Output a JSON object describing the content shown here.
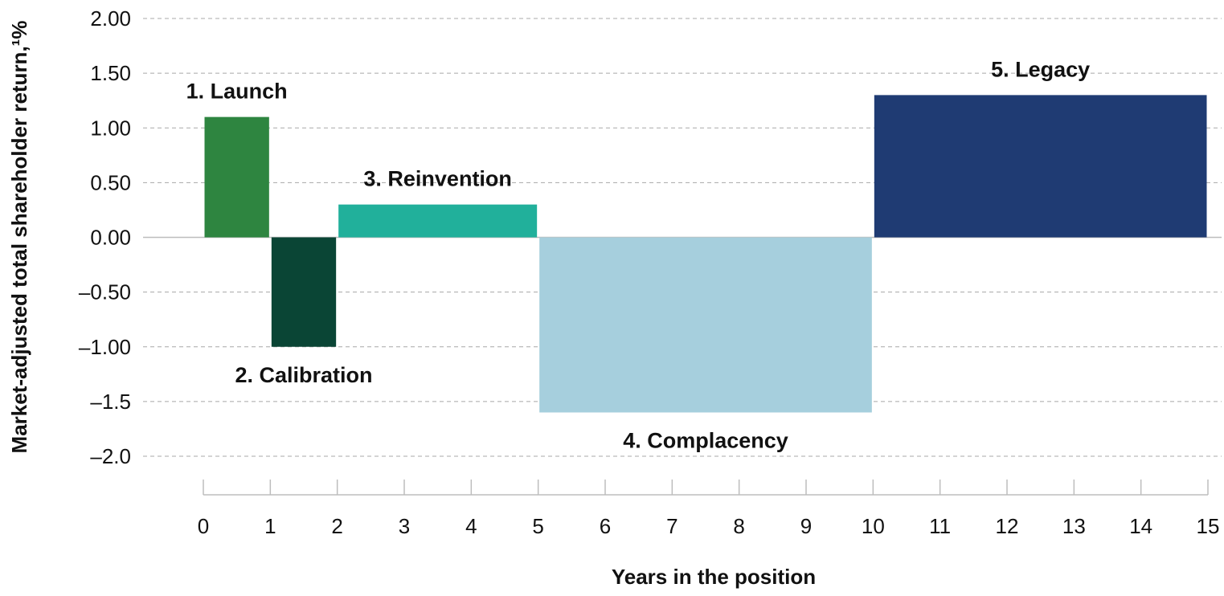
{
  "chart_data": {
    "type": "bar",
    "ylabel": "Market-adjusted total shareholder return,¹%",
    "xlabel": "Years in the position",
    "ylim": [
      -2.0,
      2.0
    ],
    "xlim": [
      0,
      15
    ],
    "grid": "horizontal-dashed",
    "y_ticks": [
      {
        "value": 2.0,
        "label": "2.00"
      },
      {
        "value": 1.5,
        "label": "1.50"
      },
      {
        "value": 1.0,
        "label": "1.00"
      },
      {
        "value": 0.5,
        "label": "0.50"
      },
      {
        "value": 0.0,
        "label": "0.00"
      },
      {
        "value": -0.5,
        "label": "–0.50"
      },
      {
        "value": -1.0,
        "label": "–1.00"
      },
      {
        "value": -1.5,
        "label": "–1.5"
      },
      {
        "value": -2.0,
        "label": "–2.0"
      }
    ],
    "x_ticks": [
      "0",
      "1",
      "2",
      "3",
      "4",
      "5",
      "6",
      "7",
      "8",
      "9",
      "10",
      "11",
      "12",
      "13",
      "14",
      "15"
    ],
    "bars": [
      {
        "label": "1. Launch",
        "x_start": 0,
        "x_end": 1,
        "value": 1.1,
        "color": "#2e8540",
        "label_position": "above"
      },
      {
        "label": "2. Calibration",
        "x_start": 1,
        "x_end": 2,
        "value": -1.0,
        "color": "#0a4535",
        "label_position": "below"
      },
      {
        "label": "3. Reinvention",
        "x_start": 2,
        "x_end": 5,
        "value": 0.3,
        "color": "#21b09b",
        "label_position": "above"
      },
      {
        "label": "4. Complacency",
        "x_start": 5,
        "x_end": 10,
        "value": -1.6,
        "color": "#a6cfdd",
        "label_position": "below"
      },
      {
        "label": "5. Legacy",
        "x_start": 10,
        "x_end": 15,
        "value": 1.3,
        "color": "#1f3b73",
        "label_position": "above"
      }
    ]
  }
}
